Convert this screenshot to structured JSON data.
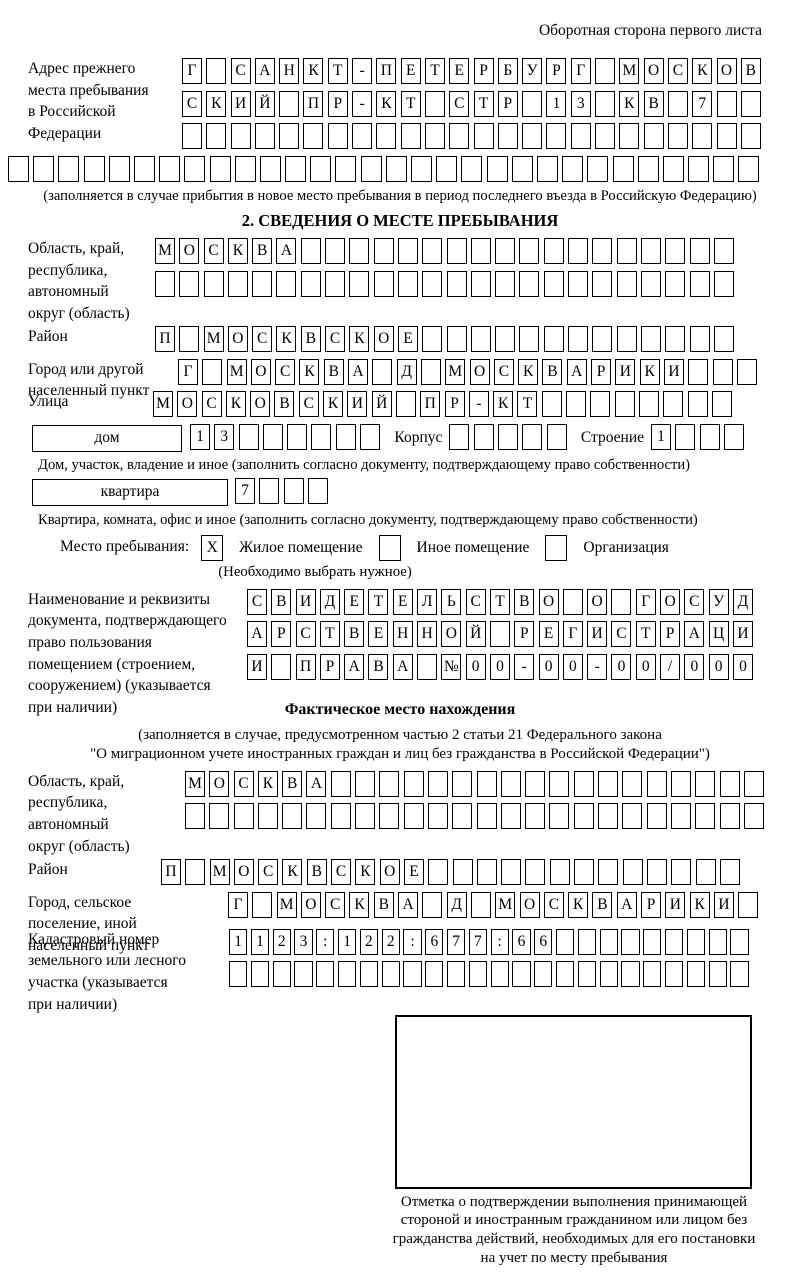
{
  "page": {
    "header_note": "Оборотная сторона первого листа"
  },
  "prev_address": {
    "label": "Адрес прежнего места пребывания в Российской Федерации",
    "row1": {
      "len": 24,
      "text": "Г САНКТ-ПЕТЕРБУРГ МОСКОВ"
    },
    "row2": {
      "len": 24,
      "text": "СКИЙ ПР-КТ СТР 13 КВ 7"
    },
    "row3": {
      "len": 24,
      "text": ""
    },
    "row4": {
      "len": 30,
      "text": ""
    },
    "caption": "(заполняется в случае прибытия в новое место пребывания в период последнего въезда в Российскую Федерацию)"
  },
  "section2": {
    "title": "2. СВЕДЕНИЯ О МЕСТЕ ПРЕБЫВАНИЯ",
    "region": {
      "label": "Область, край, республика, автономный округ (область)",
      "row1": {
        "len": 24,
        "text": "МОСКВА"
      },
      "row2": {
        "len": 24,
        "text": ""
      }
    },
    "district": {
      "label": "Район",
      "row": {
        "len": 24,
        "text": "П МОСКВСКОЕ"
      }
    },
    "city": {
      "label": "Город или другой населенный пункт",
      "row": {
        "len": 24,
        "text": "Г МОСКВА Д МОСКВАРИКИ"
      }
    },
    "street": {
      "label": "Улица",
      "row": {
        "len": 24,
        "text": "МОСКОВСКИЙ ПР-КТ"
      }
    },
    "house_row": {
      "box_label": "дом",
      "cells1": {
        "len": 8,
        "text": "13"
      },
      "korpus_label": "Корпус",
      "cells2": {
        "len": 5,
        "text": ""
      },
      "stroenie_label": "Строение",
      "cells3": {
        "len": 4,
        "text": "1"
      }
    },
    "house_caption": "Дом, участок, владение и иное (заполнить согласно документу, подтверждающему право собственности)",
    "apartment_row": {
      "box_label": "квартира",
      "cells": {
        "len": 4,
        "text": "7"
      }
    },
    "apartment_caption": "Квартира, комната, офис и иное (заполнить согласно документу, подтверждающему право собственности)",
    "stay_type": {
      "label": "Место пребывания:",
      "opt1_mark": "X",
      "opt1": "Жилое помещение",
      "opt2_mark": "",
      "opt2": "Иное помещение",
      "opt3_mark": "",
      "opt3": "Организация",
      "note": "(Необходимо выбрать нужное)"
    },
    "document": {
      "label": "Наименование и реквизиты документа, подтверждающего право пользования помещением (строением, сооружением) (указывается при наличии)",
      "row1": {
        "len": 21,
        "text": "СВИДЕТЕЛЬСТВО О ГОСУД"
      },
      "row2": {
        "len": 21,
        "text": "АРСТВЕННОЙ РЕГИСТРАЦИ"
      },
      "row3": {
        "len": 21,
        "text": "И ПРАВА №00-00-00/000"
      }
    }
  },
  "actual_location": {
    "title": "Фактическое место нахождения",
    "subtitle1": "(заполняется в случае, предусмотренном частью 2 статьи 21 Федерального закона",
    "subtitle2": "\"О миграционном учете иностранных граждан и лиц без гражданства в Российской Федерации\")",
    "region": {
      "label": "Область, край, республика, автономный округ (область)",
      "row1": {
        "len": 24,
        "text": "МОСКВА"
      },
      "row2": {
        "len": 24,
        "text": ""
      }
    },
    "district": {
      "label": "Район",
      "row": {
        "len": 24,
        "text": "П МОСКВСКОЕ"
      }
    },
    "city": {
      "label": "Город, сельское поселение, иной населенный пункт",
      "row": {
        "len": 22,
        "text": "Г МОСКВА Д МОСКВАРИКИ"
      }
    },
    "cadastre": {
      "label": "Кадастровый номер земельного или лесного участка (указывается при наличии)",
      "row1": {
        "len": 24,
        "text": "1123:122:677:66"
      },
      "row2": {
        "len": 24,
        "text": ""
      }
    }
  },
  "stamp": {
    "caption": "Отметка о подтверждении выполнения принимающей стороной и иностранным гражданином или лицом без гражданства действий, необходимых для его постановки на учет по месту пребывания"
  }
}
